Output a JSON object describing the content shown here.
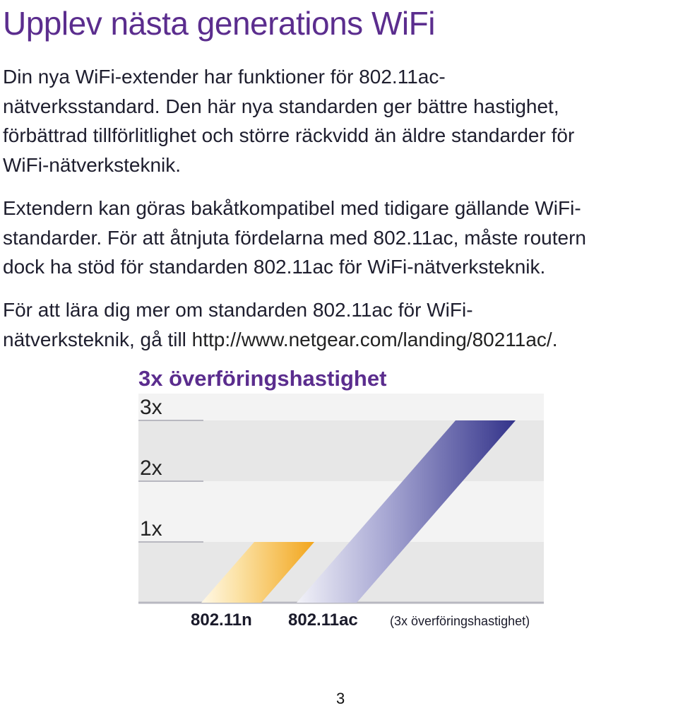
{
  "title": "Upplev nästa generations WiFi",
  "paragraph1_lines": [
    "Din nya WiFi-extender har funktioner för 802.11ac-",
    "nätverksstandard. Den här nya standarden ger bättre hastighet,",
    "förbättrad tillförlitlighet och större räckvidd än äldre standarder för",
    "WiFi-nätverksteknik."
  ],
  "paragraph2_lines": [
    "Extendern kan göras bakåtkompatibel med tidigare gällande WiFi-",
    "standarder. För att åtnjuta fördelarna med 802.11ac, måste routern",
    "dock ha stöd för standarden 802.11ac för WiFi-nätverksteknik."
  ],
  "paragraph3_line1": "För att lära dig mer om standarden 802.11ac för WiFi-",
  "paragraph3_line2_prefix": "nätverksteknik, gå till ",
  "paragraph3_link": "http://www.netgear.com/landing/80211ac/.",
  "page_number": "3",
  "colors": {
    "title": "#5b2d8e",
    "ac_bar": "#3a3a8c",
    "n_bar": "#f2a51c",
    "band_light": "#f3f3f3",
    "band_mid": "#e7e7e7"
  },
  "chart_data": {
    "type": "bar",
    "title": "3x överföringshastighet",
    "categories": [
      "802.11n",
      "802.11ac"
    ],
    "values": [
      1,
      3
    ],
    "tick_labels": [
      "1x",
      "2x",
      "3x"
    ],
    "ylim": [
      0,
      3.5
    ],
    "annotation": "(3x överföringshastighet)",
    "grid": true
  }
}
